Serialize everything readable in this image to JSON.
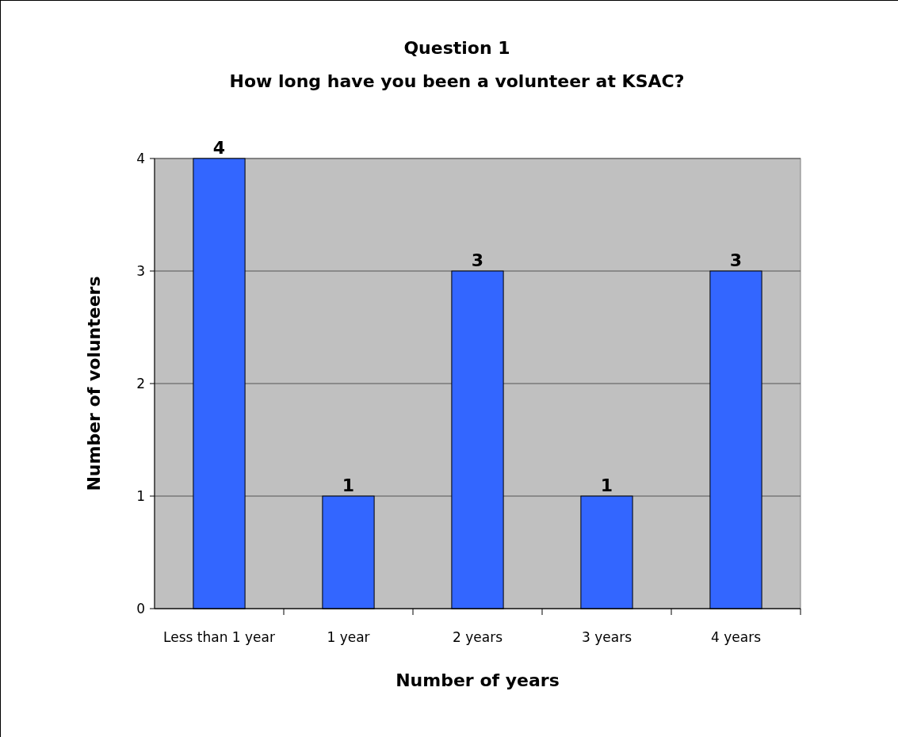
{
  "chart_data": {
    "type": "bar",
    "title": "Question 1",
    "subtitle": "How long have you been a volunteer at KSAC?",
    "xlabel": "Number of years",
    "ylabel": "Number of volunteers",
    "categories": [
      "Less than 1 year",
      "1 year",
      "2 years",
      "3 years",
      "4 years"
    ],
    "values": [
      4,
      1,
      3,
      1,
      3
    ],
    "color": "#3366ff",
    "ylim": [
      0,
      4
    ],
    "yticks": [
      0,
      1,
      2,
      3,
      4
    ],
    "grid": "y",
    "data_labels": true
  }
}
